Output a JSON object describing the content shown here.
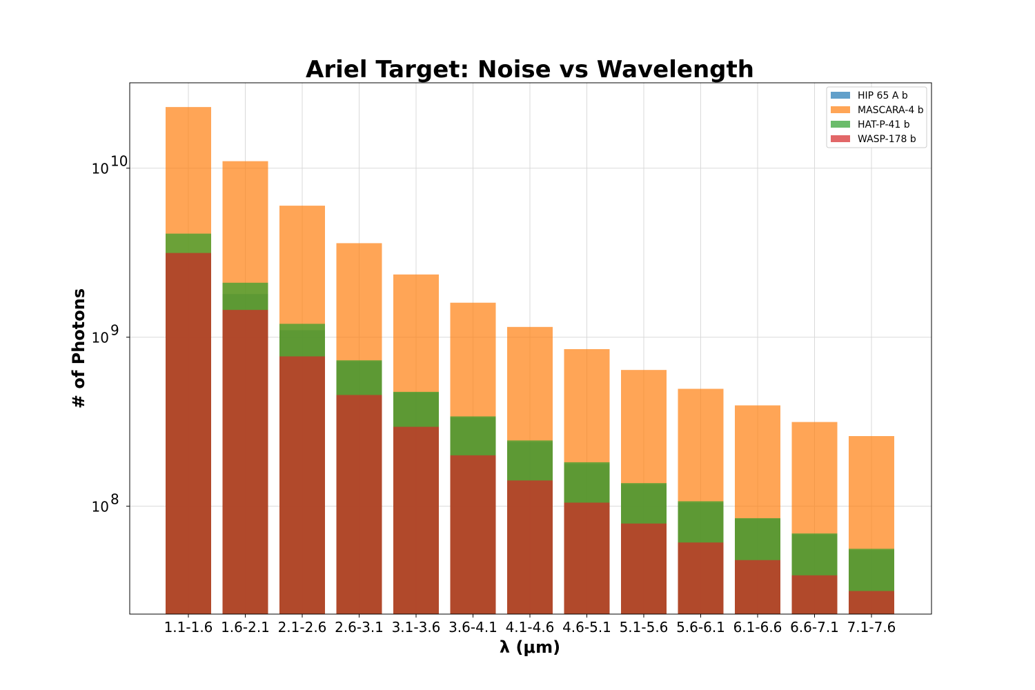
{
  "chart_data": {
    "type": "bar",
    "title": "Ariel Target: Noise vs Wavelength",
    "xlabel": "λ (μm)",
    "ylabel": "# of Photons",
    "yscale": "log",
    "ylim": [
      23000000,
      32000000000
    ],
    "yticks": [
      {
        "value": 100000000,
        "base": "10",
        "exp": "8"
      },
      {
        "value": 1000000000,
        "base": "10",
        "exp": "9"
      },
      {
        "value": 10000000000,
        "base": "10",
        "exp": "10"
      }
    ],
    "grid": true,
    "legend_position": "top-right",
    "categories": [
      "1.1-1.6",
      "1.6-2.1",
      "2.1-2.6",
      "2.6-3.1",
      "3.1-3.6",
      "3.6-4.1",
      "4.1-4.6",
      "4.6-5.1",
      "5.1-5.6",
      "5.6-6.1",
      "6.1-6.6",
      "6.6-7.1",
      "7.1-7.6"
    ],
    "series": [
      {
        "name": "HIP 65 A b",
        "color": "#1f77b4",
        "values": [
          3150000000,
          1800000000,
          1100000000,
          720000000,
          470000000,
          335000000,
          240000000,
          178000000,
          135000000,
          105000000,
          84000000,
          68000000,
          55000000
        ]
      },
      {
        "name": "MASCARA-4 b",
        "color": "#ff7f0e",
        "values": [
          23000000000,
          11000000000,
          6000000000,
          3600000000,
          2350000000,
          1600000000,
          1150000000,
          850000000,
          640000000,
          495000000,
          395000000,
          315000000,
          260000000
        ]
      },
      {
        "name": "HAT-P-41 b",
        "color": "#2ca02c",
        "values": [
          4100000000,
          2100000000,
          1200000000,
          730000000,
          475000000,
          340000000,
          245000000,
          182000000,
          137000000,
          107000000,
          85000000,
          69000000,
          56000000
        ]
      },
      {
        "name": "WASP-178 b",
        "color": "#d62728",
        "values": [
          3150000000,
          1450000000,
          770000000,
          455000000,
          295000000,
          200000000,
          142000000,
          105000000,
          79000000,
          61000000,
          48000000,
          39000000,
          31500000
        ]
      }
    ],
    "overlay_values": {
      "mascara_lower_band": [
        0,
        2150000000,
        1220000000,
        745000000,
        0,
        345000000,
        250000000,
        188000000,
        143000000,
        113000000,
        90000000,
        73000000,
        59000000
      ]
    }
  }
}
